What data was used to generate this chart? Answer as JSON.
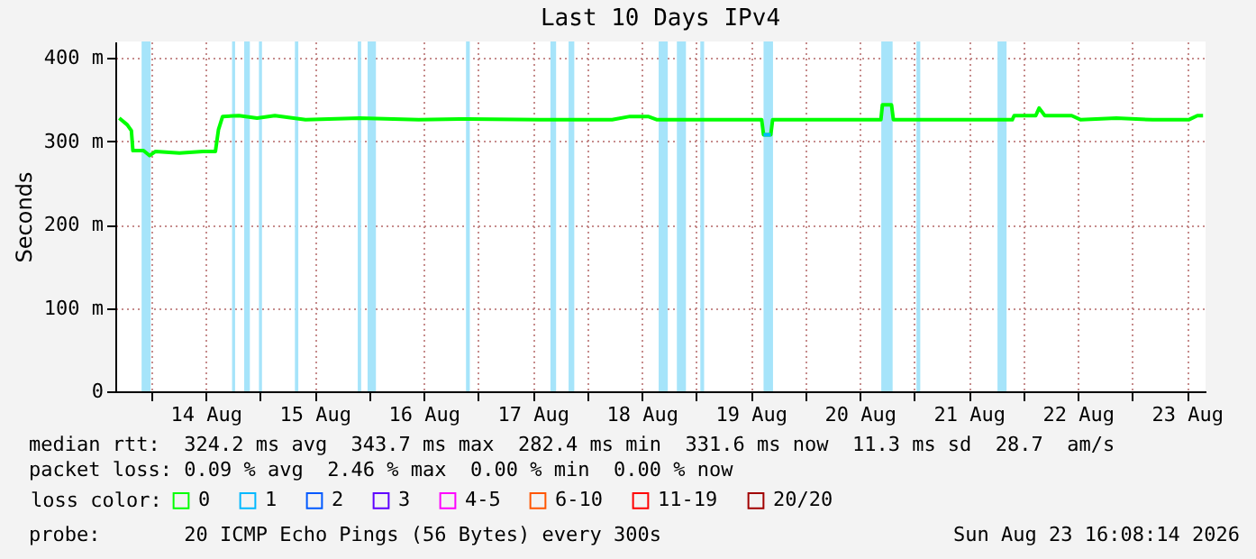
{
  "chart_data": {
    "type": "line",
    "title": "Last 10 Days IPv4",
    "ylabel": "Seconds",
    "legend_title": "loss color:",
    "legend": "bottom",
    "grid": true,
    "x": [
      "2026-08-13T17:00",
      "2026-08-13T18:45",
      "2026-08-13T19:40",
      "2026-08-13T20:00",
      "2026-08-13T22:20",
      "2026-08-13T23:40",
      "2026-08-14T01:00",
      "2026-08-14T06:15",
      "2026-08-14T11:25",
      "2026-08-14T14:10",
      "2026-08-14T14:50",
      "2026-08-14T15:45",
      "2026-08-14T19:20",
      "2026-08-14T23:20",
      "2026-08-15T03:15",
      "2026-08-15T10:00",
      "2026-08-15T21:55",
      "2026-08-16T10:55",
      "2026-08-16T21:45",
      "2026-08-17T13:40",
      "2026-08-18T05:30",
      "2026-08-18T09:25",
      "2026-08-18T13:25",
      "2026-08-18T15:25",
      "2026-08-19T14:25",
      "2026-08-19T14:50",
      "2026-08-19T16:25",
      "2026-08-19T16:50",
      "2026-08-20T16:40",
      "2026-08-20T17:00",
      "2026-08-20T19:00",
      "2026-08-20T19:25",
      "2026-08-21T21:35",
      "2026-08-21T22:00",
      "2026-08-22T02:45",
      "2026-08-22T03:30",
      "2026-08-22T04:45",
      "2026-08-22T10:40",
      "2026-08-22T12:40",
      "2026-08-22T20:30",
      "2026-08-23T04:30",
      "2026-08-23T12:25",
      "2026-08-23T14:20",
      "2026-08-23T15:35"
    ],
    "series": [
      {
        "name": "0",
        "color": "#00ff00",
        "values": [
          328,
          320,
          313,
          289,
          289,
          283,
          288,
          286,
          288,
          288,
          314,
          330,
          331,
          328,
          331,
          326,
          328,
          326,
          327,
          326,
          326,
          330,
          330,
          326,
          326,
          308,
          308,
          326,
          326,
          344,
          344,
          326,
          326,
          331,
          331,
          340,
          331,
          331,
          326,
          328,
          326,
          326,
          331,
          331
        ]
      },
      {
        "name": "1",
        "color": "#00b8ff",
        "values": [
          null,
          null,
          null,
          null,
          null,
          null,
          null,
          null,
          null,
          null,
          null,
          null,
          null,
          null,
          null,
          null,
          null,
          null,
          null,
          null,
          null,
          null,
          null,
          null,
          null,
          308,
          308,
          null,
          null,
          null,
          null,
          null,
          null,
          null,
          null,
          null,
          null,
          null,
          null,
          null,
          null,
          null,
          null,
          null
        ]
      },
      {
        "name": "2",
        "color": "#0059ff",
        "values": [
          null,
          null,
          null,
          null,
          null,
          null,
          null,
          null,
          null,
          null,
          null,
          null,
          null,
          null,
          null,
          null,
          null,
          null,
          null,
          null,
          null,
          null,
          null,
          null,
          null,
          null,
          null,
          null,
          null,
          null,
          null,
          null,
          null,
          null,
          null,
          null,
          null,
          null,
          null,
          null,
          null,
          null,
          null,
          null
        ]
      },
      {
        "name": "3",
        "color": "#5e00ff",
        "values": [
          null,
          null,
          null,
          null,
          null,
          null,
          null,
          null,
          null,
          null,
          null,
          null,
          null,
          null,
          null,
          null,
          null,
          null,
          null,
          null,
          null,
          null,
          null,
          null,
          null,
          null,
          null,
          null,
          null,
          null,
          null,
          null,
          null,
          null,
          null,
          null,
          null,
          null,
          null,
          null,
          null,
          null,
          null,
          null
        ]
      },
      {
        "name": "4-5",
        "color": "#ff00ff",
        "values": [
          null,
          null,
          null,
          null,
          null,
          null,
          null,
          null,
          null,
          null,
          null,
          null,
          null,
          null,
          null,
          null,
          null,
          null,
          null,
          null,
          null,
          null,
          null,
          null,
          null,
          null,
          null,
          null,
          null,
          null,
          null,
          null,
          null,
          null,
          null,
          null,
          null,
          null,
          null,
          null,
          null,
          null,
          null,
          null
        ]
      },
      {
        "name": "6-10",
        "color": "#ff5500",
        "values": [
          null,
          null,
          null,
          null,
          null,
          null,
          null,
          null,
          null,
          null,
          null,
          null,
          null,
          null,
          null,
          null,
          null,
          null,
          null,
          null,
          null,
          null,
          null,
          null,
          null,
          null,
          null,
          null,
          null,
          null,
          null,
          null,
          null,
          null,
          null,
          null,
          null,
          null,
          null,
          null,
          null,
          null,
          null,
          null
        ]
      },
      {
        "name": "11-19",
        "color": "#ff0000",
        "values": [
          null,
          null,
          null,
          null,
          null,
          null,
          null,
          null,
          null,
          null,
          null,
          null,
          null,
          null,
          null,
          null,
          null,
          null,
          null,
          null,
          null,
          null,
          null,
          null,
          null,
          null,
          null,
          null,
          null,
          null,
          null,
          null,
          null,
          null,
          null,
          null,
          null,
          null,
          null,
          null,
          null,
          null,
          null,
          null
        ]
      },
      {
        "name": "20/20",
        "color": "#a10000",
        "values": [
          null,
          null,
          null,
          null,
          null,
          null,
          null,
          null,
          null,
          null,
          null,
          null,
          null,
          null,
          null,
          null,
          null,
          null,
          null,
          null,
          null,
          null,
          null,
          null,
          null,
          null,
          null,
          null,
          null,
          null,
          null,
          null,
          null,
          null,
          null,
          null,
          null,
          null,
          null,
          null,
          null,
          null,
          null,
          null
        ]
      }
    ],
    "xlim": [
      "2026-08-13T16:08",
      "2026-08-23T16:08"
    ],
    "xticks": [
      {
        "value": "2026-08-14T00:00",
        "label": null
      },
      {
        "value": "2026-08-14T12:00",
        "label": "14 Aug"
      },
      {
        "value": "2026-08-15T00:00",
        "label": null
      },
      {
        "value": "2026-08-15T12:00",
        "label": "15 Aug"
      },
      {
        "value": "2026-08-16T00:00",
        "label": null
      },
      {
        "value": "2026-08-16T12:00",
        "label": "16 Aug"
      },
      {
        "value": "2026-08-17T00:00",
        "label": null
      },
      {
        "value": "2026-08-17T12:00",
        "label": "17 Aug"
      },
      {
        "value": "2026-08-18T00:00",
        "label": null
      },
      {
        "value": "2026-08-18T12:00",
        "label": "18 Aug"
      },
      {
        "value": "2026-08-19T00:00",
        "label": null
      },
      {
        "value": "2026-08-19T12:00",
        "label": "19 Aug"
      },
      {
        "value": "2026-08-20T00:00",
        "label": null
      },
      {
        "value": "2026-08-20T12:00",
        "label": "20 Aug"
      },
      {
        "value": "2026-08-21T00:00",
        "label": null
      },
      {
        "value": "2026-08-21T12:00",
        "label": "21 Aug"
      },
      {
        "value": "2026-08-22T00:00",
        "label": null
      },
      {
        "value": "2026-08-22T12:00",
        "label": "22 Aug"
      },
      {
        "value": "2026-08-23T00:00",
        "label": null
      },
      {
        "value": "2026-08-23T12:00",
        "label": "23 Aug"
      }
    ],
    "ylim": [
      0,
      420
    ],
    "yticks": [
      0,
      {
        "value": 100,
        "label": "100 m"
      },
      {
        "value": 200,
        "label": "200 m"
      },
      {
        "value": 300,
        "label": "300 m"
      },
      {
        "value": 400,
        "label": "400 m"
      }
    ],
    "bands": [
      {
        "axis": "x",
        "from": "2026-08-13T21:55",
        "to": "2026-08-13T23:55",
        "color": "#a6e4fa"
      },
      {
        "axis": "x",
        "from": "2026-08-14T17:50",
        "to": "2026-08-14T18:30",
        "color": "#a6e4fa"
      },
      {
        "axis": "x",
        "from": "2026-08-14T20:30",
        "to": "2026-08-14T21:45",
        "color": "#a6e4fa"
      },
      {
        "axis": "x",
        "from": "2026-08-14T23:45",
        "to": "2026-08-15T00:25",
        "color": "#a6e4fa"
      },
      {
        "axis": "x",
        "from": "2026-08-15T07:40",
        "to": "2026-08-15T08:25",
        "color": "#a6e4fa"
      },
      {
        "axis": "x",
        "from": "2026-08-15T21:30",
        "to": "2026-08-15T22:15",
        "color": "#a6e4fa"
      },
      {
        "axis": "x",
        "from": "2026-08-15T23:40",
        "to": "2026-08-16T01:30",
        "color": "#a6e4fa"
      },
      {
        "axis": "x",
        "from": "2026-08-16T21:20",
        "to": "2026-08-16T22:10",
        "color": "#a6e4fa"
      },
      {
        "axis": "x",
        "from": "2026-08-17T15:55",
        "to": "2026-08-17T17:10",
        "color": "#a6e4fa"
      },
      {
        "axis": "x",
        "from": "2026-08-17T19:55",
        "to": "2026-08-17T21:10",
        "color": "#a6e4fa"
      },
      {
        "axis": "x",
        "from": "2026-08-18T15:45",
        "to": "2026-08-18T17:45",
        "color": "#a6e4fa"
      },
      {
        "axis": "x",
        "from": "2026-08-18T19:45",
        "to": "2026-08-18T21:45",
        "color": "#a6e4fa"
      },
      {
        "axis": "x",
        "from": "2026-08-19T00:55",
        "to": "2026-08-19T01:45",
        "color": "#a6e4fa"
      },
      {
        "axis": "x",
        "from": "2026-08-19T14:50",
        "to": "2026-08-19T16:55",
        "color": "#a6e4fa"
      },
      {
        "axis": "x",
        "from": "2026-08-20T16:45",
        "to": "2026-08-20T19:15",
        "color": "#a6e4fa"
      },
      {
        "axis": "x",
        "from": "2026-08-21T00:30",
        "to": "2026-08-21T01:20",
        "color": "#a6e4fa"
      },
      {
        "axis": "x",
        "from": "2026-08-21T18:20",
        "to": "2026-08-21T20:20",
        "color": "#a6e4fa"
      }
    ],
    "annotations": [
      "median rtt:  324.2 ms avg  343.7 ms max  282.4 ms min  331.6 ms now  11.3 ms sd  28.7  am/s",
      "packet loss: 0.09 % avg  2.46 % max  0.00 % min  0.00 % now",
      "probe:       20 ICMP Echo Pings (56 Bytes) every 300s",
      "Sun Aug 23 16:08:14 2026"
    ]
  }
}
